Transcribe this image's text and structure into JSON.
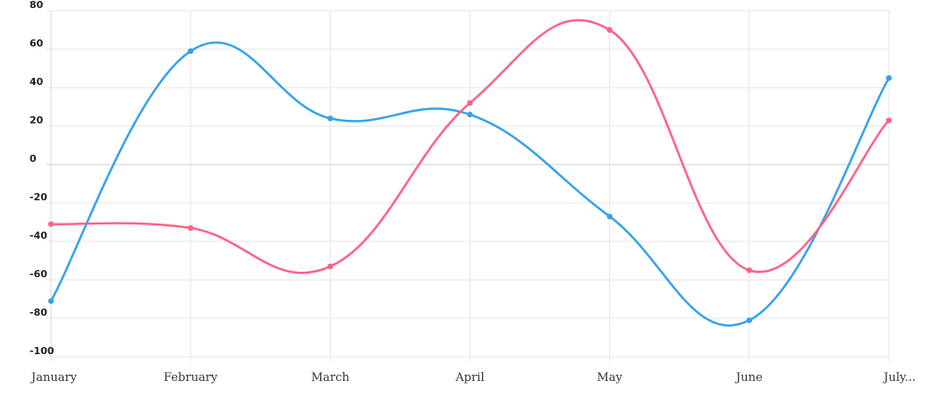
{
  "colors": {
    "series_blue": "#36a2eb",
    "series_pink": "#ff6384",
    "grid": "#e6e6e6"
  },
  "chart_data": {
    "type": "line",
    "smooth": true,
    "grid": true,
    "legend": "none",
    "title": "",
    "xlabel": "",
    "ylabel": "",
    "categories": [
      "January",
      "February",
      "March",
      "April",
      "May",
      "June",
      "July..."
    ],
    "ylim": [
      -100,
      80
    ],
    "yticks": [
      "80",
      "60",
      "40",
      "20",
      "0",
      "-20",
      "-40",
      "-60",
      "-80",
      "-100"
    ],
    "series": [
      {
        "color": "#36a2eb",
        "values": [
          -71,
          59,
          24,
          26,
          -27,
          -81,
          45
        ]
      },
      {
        "color": "#ff6384",
        "values": [
          -31,
          -33,
          -53,
          32,
          70,
          -55,
          23
        ]
      }
    ]
  }
}
